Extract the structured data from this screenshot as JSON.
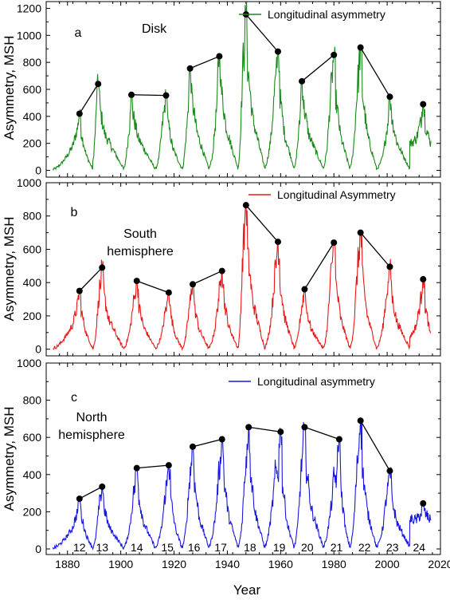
{
  "chart_data": [
    {
      "type": "line",
      "panel_letter": "a",
      "annotation": "Disk",
      "ylabel": "Asymmetry, MSH",
      "xlim": [
        1872,
        2020
      ],
      "ylim": [
        -50,
        1250
      ],
      "yticks": [
        0,
        200,
        400,
        600,
        800,
        1000,
        1200
      ],
      "legend_position": "top-right",
      "series": [
        {
          "name": "Longitudinal asymmetry",
          "color": "#1a8a1a",
          "cycles": [
            {
              "start": 1874.5,
              "rise_end": 1884,
              "peak_year": 1884.5,
              "peak": 420,
              "end": 1889.5,
              "min_value": 8
            },
            {
              "start": 1889.5,
              "rise_end": 1891,
              "peak_year": 1891.5,
              "peak": 640,
              "end": 1901,
              "min_value": 15
            },
            {
              "start": 1901,
              "rise_end": 1904,
              "peak_year": 1904,
              "peak": 560,
              "end": 1913,
              "min_value": 10
            },
            {
              "start": 1913,
              "rise_end": 1916,
              "peak_year": 1917,
              "peak": 555,
              "end": 1923,
              "min_value": 10
            },
            {
              "start": 1923,
              "rise_end": 1926,
              "peak_year": 1926,
              "peak": 755,
              "end": 1933,
              "min_value": 15
            },
            {
              "start": 1933,
              "rise_end": 1937,
              "peak_year": 1937,
              "peak": 845,
              "end": 1944,
              "min_value": 15
            },
            {
              "start": 1944,
              "rise_end": 1946,
              "peak_year": 1947,
              "peak": 1155,
              "end": 1954,
              "min_value": 20
            },
            {
              "start": 1954,
              "rise_end": 1958,
              "peak_year": 1959,
              "peak": 880,
              "end": 1965,
              "min_value": 20
            },
            {
              "start": 1965,
              "rise_end": 1968,
              "peak_year": 1968,
              "peak": 660,
              "end": 1976,
              "min_value": 15
            },
            {
              "start": 1976,
              "rise_end": 1979,
              "peak_year": 1980,
              "peak": 855,
              "end": 1986,
              "min_value": 15
            },
            {
              "start": 1986,
              "rise_end": 1989,
              "peak_year": 1990,
              "peak": 910,
              "end": 1996,
              "min_value": 15
            },
            {
              "start": 1996,
              "rise_end": 2001,
              "peak_year": 2001,
              "peak": 545,
              "end": 2008.5,
              "min_value": 10
            },
            {
              "start": 2008.5,
              "rise_end": 2013,
              "peak_year": 2013.5,
              "peak": 490,
              "end": 2016.5,
              "min_value": 200
            }
          ]
        }
      ],
      "marker_points": [
        {
          "x": 1884.5,
          "y": 420
        },
        {
          "x": 1891.5,
          "y": 640
        },
        {
          "x": 1904,
          "y": 560
        },
        {
          "x": 1917,
          "y": 555
        },
        {
          "x": 1926,
          "y": 755
        },
        {
          "x": 1937,
          "y": 845
        },
        {
          "x": 1947,
          "y": 1155
        },
        {
          "x": 1959,
          "y": 880
        },
        {
          "x": 1968,
          "y": 660
        },
        {
          "x": 1980,
          "y": 855
        },
        {
          "x": 1990,
          "y": 910
        },
        {
          "x": 2001,
          "y": 545
        },
        {
          "x": 2013.5,
          "y": 490
        }
      ],
      "connected_pairs": [
        [
          0,
          1
        ],
        [
          2,
          3
        ],
        [
          4,
          5
        ],
        [
          6,
          7
        ],
        [
          8,
          9
        ],
        [
          10,
          11
        ]
      ]
    },
    {
      "type": "line",
      "panel_letter": "b",
      "annotation": [
        "South",
        "hemisphere"
      ],
      "ylabel": "Asymmetry, MSH",
      "xlim": [
        1872,
        2020
      ],
      "ylim": [
        -40,
        1000
      ],
      "yticks": [
        0,
        200,
        400,
        600,
        800,
        1000
      ],
      "legend_position": "top-right",
      "series": [
        {
          "name": "Longitudinal Asymmetry",
          "color": "#e81818",
          "cycles": [
            {
              "start": 1874.5,
              "rise_end": 1884,
              "peak_year": 1884.5,
              "peak": 350,
              "end": 1889.5,
              "min_value": 5
            },
            {
              "start": 1889.5,
              "rise_end": 1892,
              "peak_year": 1893,
              "peak": 490,
              "end": 1901,
              "min_value": 5
            },
            {
              "start": 1901,
              "rise_end": 1905,
              "peak_year": 1906,
              "peak": 410,
              "end": 1913,
              "min_value": 5
            },
            {
              "start": 1913,
              "rise_end": 1917,
              "peak_year": 1918,
              "peak": 340,
              "end": 1923,
              "min_value": 5
            },
            {
              "start": 1923,
              "rise_end": 1926,
              "peak_year": 1927,
              "peak": 390,
              "end": 1933,
              "min_value": 5
            },
            {
              "start": 1933,
              "rise_end": 1937,
              "peak_year": 1938,
              "peak": 470,
              "end": 1944,
              "min_value": 5
            },
            {
              "start": 1944,
              "rise_end": 1946,
              "peak_year": 1947,
              "peak": 865,
              "end": 1954,
              "min_value": 10
            },
            {
              "start": 1954,
              "rise_end": 1958,
              "peak_year": 1959,
              "peak": 645,
              "end": 1965,
              "min_value": 10
            },
            {
              "start": 1965,
              "rise_end": 1968,
              "peak_year": 1969,
              "peak": 360,
              "end": 1976,
              "min_value": 5
            },
            {
              "start": 1976,
              "rise_end": 1979,
              "peak_year": 1980,
              "peak": 640,
              "end": 1986,
              "min_value": 5
            },
            {
              "start": 1986,
              "rise_end": 1989,
              "peak_year": 1990,
              "peak": 700,
              "end": 1996,
              "min_value": 5
            },
            {
              "start": 1996,
              "rise_end": 2000,
              "peak_year": 2001,
              "peak": 495,
              "end": 2008.5,
              "min_value": 5
            },
            {
              "start": 2008.5,
              "rise_end": 2013,
              "peak_year": 2013.5,
              "peak": 420,
              "end": 2016.5,
              "min_value": 80
            }
          ]
        }
      ],
      "marker_points": [
        {
          "x": 1884.5,
          "y": 350
        },
        {
          "x": 1893,
          "y": 490
        },
        {
          "x": 1906,
          "y": 410
        },
        {
          "x": 1918,
          "y": 340
        },
        {
          "x": 1927,
          "y": 390
        },
        {
          "x": 1938,
          "y": 470
        },
        {
          "x": 1947,
          "y": 865
        },
        {
          "x": 1959,
          "y": 645
        },
        {
          "x": 1969,
          "y": 360
        },
        {
          "x": 1980,
          "y": 640
        },
        {
          "x": 1990,
          "y": 700
        },
        {
          "x": 2001,
          "y": 495
        },
        {
          "x": 2013.5,
          "y": 420
        }
      ],
      "connected_pairs": [
        [
          0,
          1
        ],
        [
          2,
          3
        ],
        [
          4,
          5
        ],
        [
          6,
          7
        ],
        [
          8,
          9
        ],
        [
          10,
          11
        ]
      ]
    },
    {
      "type": "line",
      "panel_letter": "c",
      "annotation": [
        "North",
        "hemisphere"
      ],
      "ylabel": "Asymmetry, MSH",
      "xlabel": "Year",
      "xlim": [
        1872,
        2020
      ],
      "ylim": [
        -30,
        1000
      ],
      "yticks": [
        0,
        200,
        400,
        600,
        800,
        1000
      ],
      "xticks": [
        1880,
        1900,
        1920,
        1940,
        1960,
        1980,
        2000,
        2020
      ],
      "legend_position": "top-right",
      "series": [
        {
          "name": "Longitudinal asymmetry",
          "color": "#1818e0",
          "cycles": [
            {
              "start": 1874.5,
              "rise_end": 1884,
              "peak_year": 1884.5,
              "peak": 270,
              "end": 1889.5,
              "min_value": 5
            },
            {
              "start": 1889.5,
              "rise_end": 1892,
              "peak_year": 1893,
              "peak": 335,
              "end": 1901,
              "min_value": 5
            },
            {
              "start": 1901,
              "rise_end": 1905,
              "peak_year": 1906,
              "peak": 435,
              "end": 1913,
              "min_value": 5
            },
            {
              "start": 1913,
              "rise_end": 1917,
              "peak_year": 1918,
              "peak": 450,
              "end": 1923,
              "min_value": 5
            },
            {
              "start": 1923,
              "rise_end": 1926,
              "peak_year": 1927,
              "peak": 550,
              "end": 1933,
              "min_value": 10
            },
            {
              "start": 1933,
              "rise_end": 1937,
              "peak_year": 1938,
              "peak": 590,
              "end": 1944,
              "min_value": 10
            },
            {
              "start": 1944,
              "rise_end": 1947,
              "peak_year": 1948,
              "peak": 655,
              "end": 1954,
              "min_value": 10
            },
            {
              "start": 1954,
              "rise_end": 1958,
              "peak_year": 1960,
              "peak": 630,
              "end": 1965,
              "min_value": 10
            },
            {
              "start": 1965,
              "rise_end": 1968,
              "peak_year": 1969,
              "peak": 655,
              "end": 1976,
              "min_value": 10
            },
            {
              "start": 1976,
              "rise_end": 1980,
              "peak_year": 1982,
              "peak": 590,
              "end": 1986,
              "min_value": 10
            },
            {
              "start": 1986,
              "rise_end": 1989,
              "peak_year": 1990,
              "peak": 690,
              "end": 1996,
              "min_value": 10
            },
            {
              "start": 1996,
              "rise_end": 2000,
              "peak_year": 2001,
              "peak": 420,
              "end": 2008.5,
              "min_value": 10
            },
            {
              "start": 2008.5,
              "rise_end": 2013,
              "peak_year": 2013.5,
              "peak": 245,
              "end": 2016.5,
              "min_value": 160
            }
          ]
        }
      ],
      "marker_points": [
        {
          "x": 1884.5,
          "y": 270
        },
        {
          "x": 1893,
          "y": 335
        },
        {
          "x": 1906,
          "y": 435
        },
        {
          "x": 1918,
          "y": 450
        },
        {
          "x": 1927,
          "y": 550
        },
        {
          "x": 1938,
          "y": 590
        },
        {
          "x": 1948,
          "y": 655
        },
        {
          "x": 1960,
          "y": 630
        },
        {
          "x": 1969,
          "y": 655
        },
        {
          "x": 1982,
          "y": 590
        },
        {
          "x": 1990,
          "y": 690
        },
        {
          "x": 2001,
          "y": 420
        },
        {
          "x": 2013.5,
          "y": 245
        }
      ],
      "connected_pairs": [
        [
          0,
          1
        ],
        [
          2,
          3
        ],
        [
          4,
          5
        ],
        [
          6,
          7
        ],
        [
          8,
          9
        ],
        [
          10,
          11
        ]
      ],
      "cycle_labels": [
        {
          "text": "12",
          "x": 1884.5
        },
        {
          "text": "13",
          "x": 1893
        },
        {
          "text": "14",
          "x": 1906
        },
        {
          "text": "15",
          "x": 1917.5
        },
        {
          "text": "16",
          "x": 1927.5
        },
        {
          "text": "17",
          "x": 1937.5
        },
        {
          "text": "18",
          "x": 1948.5
        },
        {
          "text": "19",
          "x": 1959.5
        },
        {
          "text": "20",
          "x": 1970
        },
        {
          "text": "21",
          "x": 1981
        },
        {
          "text": "22",
          "x": 1991.5
        },
        {
          "text": "23",
          "x": 2002
        },
        {
          "text": "24",
          "x": 2012
        }
      ]
    }
  ]
}
